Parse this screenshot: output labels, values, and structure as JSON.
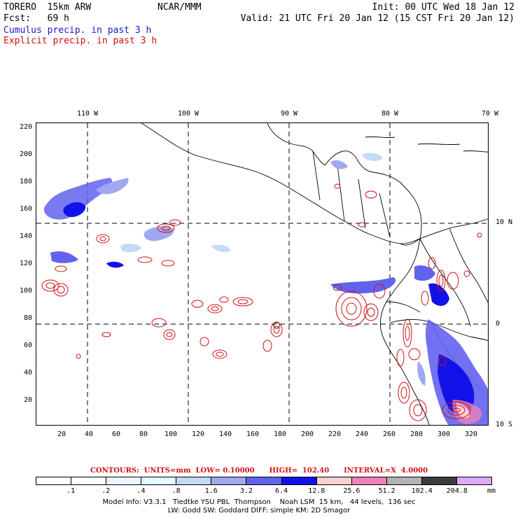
{
  "header": {
    "model": "TORERO  15km ARW",
    "org": "NCAR/MMM",
    "init": "Init: 00 UTC Wed 18 Jan 12",
    "fcst": "Fcst:   69 h",
    "valid": "Valid: 21 UTC Fri 20 Jan 12 (15 CST Fri 20 Jan 12)",
    "cumulus": "Cumulus precip. in past 3 h",
    "explicit": "Explicit precip. in past 3 h"
  },
  "axes": {
    "top_lon_labels": [
      "110 W",
      "100 W",
      "90 W",
      "80 W",
      "70 W"
    ],
    "right_lat_labels": [
      "10 N",
      "0",
      "10 S"
    ],
    "left_grid_labels": [
      "220",
      "200",
      "180",
      "160",
      "140",
      "120",
      "100",
      "80",
      "60",
      "40",
      "20"
    ],
    "bottom_grid_labels": [
      "20",
      "40",
      "60",
      "80",
      "100",
      "120",
      "140",
      "160",
      "180",
      "200",
      "220",
      "240",
      "260",
      "280",
      "300",
      "320"
    ]
  },
  "contours_line": "CONTOURS:  UNITS=mm  LOW= 0.10000      HIGH=  102.40      INTERVAL=X  4.0000",
  "legend": {
    "unit": "mm",
    "labels": [
      ".1",
      ".2",
      ".4",
      ".8",
      "1.6",
      "3.2",
      "6.4",
      "12.8",
      "25.6",
      "51.2",
      "102.4",
      "204.8"
    ],
    "colors": [
      "#ffffff",
      "#ffffff",
      "#eef4ff",
      "#e4fbff",
      "#c4daf7",
      "#a0a8f0",
      "#6262f0",
      "#1212e8",
      "#fcd0d0",
      "#ee82b8",
      "#b4b4b4",
      "#3c3c3c",
      "#dcaaf6"
    ]
  },
  "footer": {
    "line1": "Model Info: V3.3.1   Tiedtke YSU PBL  Thompson    Noah LSM  15 km,   44 levels,  136 sec",
    "line2": "LW: Godd SW: Goddard DIFF: simple KM: 2D Smagor"
  },
  "colors": {
    "cumulus": "#1a1acc",
    "explicit": "#d01010",
    "coast": "#000000"
  }
}
